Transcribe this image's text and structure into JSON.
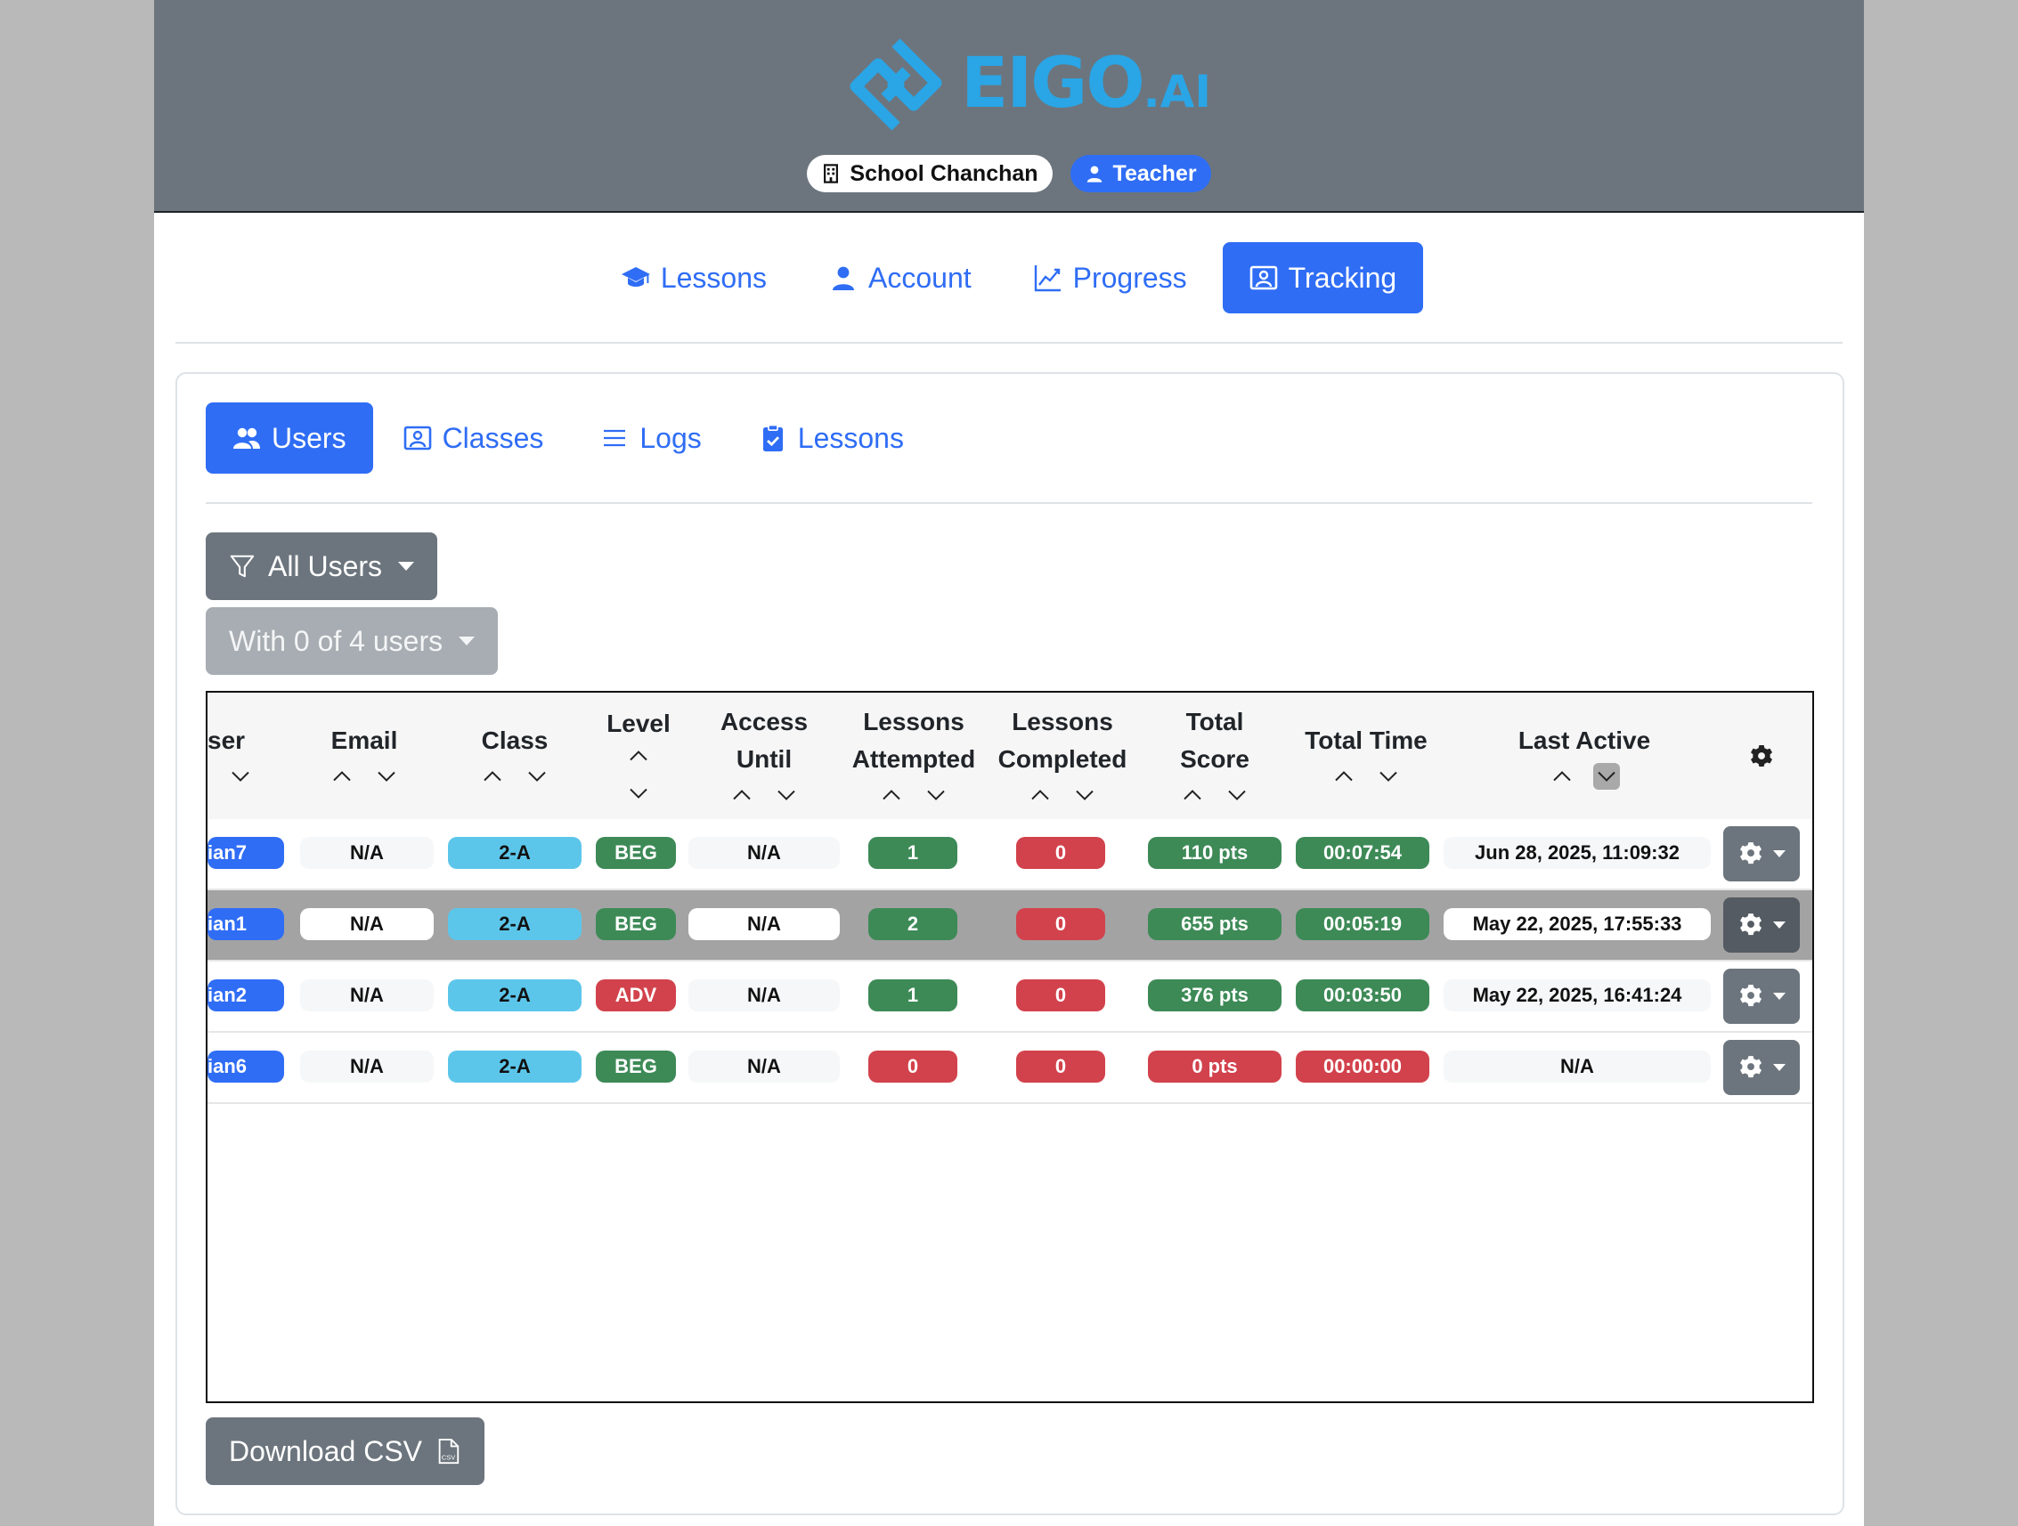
{
  "header": {
    "logo_text": "EIGO",
    "logo_suffix": ".AI",
    "school_label": "School Chanchan",
    "role_label": "Teacher"
  },
  "topnav": {
    "lessons": "Lessons",
    "account": "Account",
    "progress": "Progress",
    "tracking": "Tracking"
  },
  "subnav": {
    "users": "Users",
    "classes": "Classes",
    "logs": "Logs",
    "lessons": "Lessons"
  },
  "filters": {
    "all_users": "All Users",
    "with_users": "With 0 of 4 users"
  },
  "table": {
    "columns": {
      "user": "ser",
      "email": "Email",
      "class": "Class",
      "level": "Level",
      "access_until": "Access\nUntil",
      "lessons_attempted": "Lessons\nAttempted",
      "lessons_completed": "Lessons\nCompleted",
      "total_score": "Total\nScore",
      "total_time": "Total Time",
      "last_active": "Last Active"
    },
    "rows": [
      {
        "user": "ian7",
        "email": "N/A",
        "class": "2-A",
        "level": "BEG",
        "access": "N/A",
        "attempted": "1",
        "completed": "0",
        "score": "110 pts",
        "time": "00:07:54",
        "last": "Jun 28, 2025, 11:09:32"
      },
      {
        "user": "ian1",
        "email": "N/A",
        "class": "2-A",
        "level": "BEG",
        "access": "N/A",
        "attempted": "2",
        "completed": "0",
        "score": "655 pts",
        "time": "00:05:19",
        "last": "May 22, 2025, 17:55:33"
      },
      {
        "user": "ian2",
        "email": "N/A",
        "class": "2-A",
        "level": "ADV",
        "access": "N/A",
        "attempted": "1",
        "completed": "0",
        "score": "376 pts",
        "time": "00:03:50",
        "last": "May 22, 2025, 16:41:24"
      },
      {
        "user": "ian6",
        "email": "N/A",
        "class": "2-A",
        "level": "BEG",
        "access": "N/A",
        "attempted": "0",
        "completed": "0",
        "score": "0 pts",
        "time": "00:00:00",
        "last": "N/A"
      }
    ]
  },
  "download_csv": "Download CSV",
  "colors": {
    "primary": "#2f6df5",
    "secondary": "#6c757d",
    "success": "#3d8a57",
    "danger": "#d2424c",
    "info": "#5cc6ea",
    "logo": "#2aa5e6"
  }
}
